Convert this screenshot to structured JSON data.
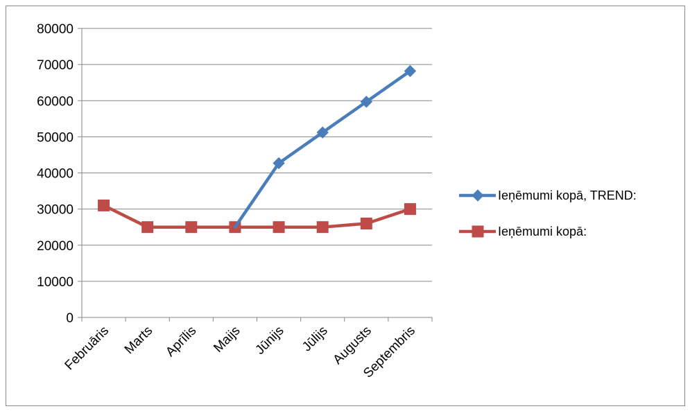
{
  "chart_data": {
    "type": "line",
    "categories": [
      "Februāris",
      "Marts",
      "Aprīlis",
      "Maijs",
      "Jūnijs",
      "Jūlijs",
      "Augusts",
      "Septembris"
    ],
    "series": [
      {
        "name": "Ieņēmumi kopā, TREND:",
        "color": "#4a7ebb",
        "marker": "diamond",
        "values": [
          null,
          null,
          null,
          25000,
          42700,
          51200,
          59700,
          68200
        ]
      },
      {
        "name": "Ieņēmumi kopā:",
        "color": "#be4b48",
        "marker": "square",
        "values": [
          31000,
          25000,
          25000,
          25000,
          25000,
          25000,
          26000,
          30000
        ]
      }
    ],
    "yticks": [
      "0",
      "10000",
      "20000",
      "30000",
      "40000",
      "50000",
      "60000",
      "70000",
      "80000"
    ],
    "ylim": [
      0,
      80000
    ],
    "grid": true,
    "legend_position": "right"
  }
}
